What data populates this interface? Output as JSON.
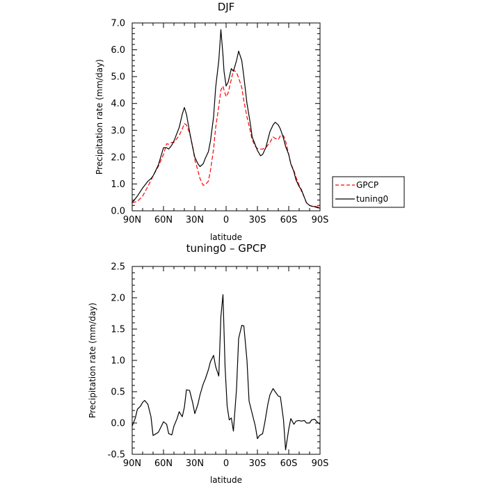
{
  "chart_data": [
    {
      "type": "line",
      "title": "DJF",
      "xlabel": "latitude",
      "ylabel": "Precipitation rate (mm/day)",
      "xlim": [
        -90,
        90
      ],
      "ylim": [
        0,
        7
      ],
      "xticks": [
        {
          "value": -90,
          "label": "90N"
        },
        {
          "value": -60,
          "label": "60N"
        },
        {
          "value": -30,
          "label": "30N"
        },
        {
          "value": 0,
          "label": "0"
        },
        {
          "value": 30,
          "label": "30S"
        },
        {
          "value": 60,
          "label": "60S"
        },
        {
          "value": 90,
          "label": "90S"
        }
      ],
      "yticks": [
        "0.0",
        "1.0",
        "2.0",
        "3.0",
        "4.0",
        "5.0",
        "6.0",
        "7.0"
      ],
      "legend_placement": "right",
      "legend": [
        "GPCP",
        "tuning0"
      ],
      "series": [
        {
          "name": "GPCP",
          "color": "#ff0000",
          "dash": "dashed",
          "x": [
            -90,
            -85,
            -80,
            -75,
            -70,
            -65,
            -60,
            -57,
            -55,
            -52,
            -50,
            -45,
            -42,
            -40,
            -38,
            -35,
            -32,
            -30,
            -27,
            -25,
            -22,
            -20,
            -17,
            -15,
            -12,
            -10,
            -7,
            -5,
            -3,
            -2,
            0,
            2,
            5,
            7,
            10,
            12,
            15,
            17,
            20,
            23,
            25,
            28,
            30,
            33,
            35,
            38,
            40,
            42,
            45,
            47,
            50,
            52,
            55,
            57,
            60,
            62,
            65,
            67,
            70,
            72,
            75,
            77,
            80,
            82,
            85,
            87,
            90
          ],
          "y": [
            0.3,
            0.35,
            0.55,
            0.9,
            1.3,
            1.65,
            2.1,
            2.5,
            2.48,
            2.55,
            2.55,
            2.8,
            3.05,
            3.25,
            3.2,
            2.9,
            2.4,
            1.9,
            1.5,
            1.2,
            0.95,
            0.98,
            1.1,
            1.5,
            2.3,
            3.1,
            3.9,
            4.5,
            4.65,
            4.5,
            4.25,
            4.4,
            4.9,
            5.25,
            5.15,
            4.95,
            4.6,
            4.1,
            3.5,
            3.0,
            2.65,
            2.4,
            2.32,
            2.3,
            2.3,
            2.35,
            2.45,
            2.55,
            2.75,
            2.7,
            2.65,
            2.8,
            2.8,
            2.6,
            2.1,
            1.75,
            1.5,
            1.25,
            0.95,
            0.75,
            0.5,
            0.3,
            0.2,
            0.18,
            0.17,
            0.15,
            0.13
          ]
        },
        {
          "name": "tuning0",
          "color": "#000000",
          "dash": "solid",
          "x": [
            -90,
            -85,
            -80,
            -75,
            -72,
            -70,
            -65,
            -60,
            -57,
            -55,
            -52,
            -50,
            -45,
            -42,
            -40,
            -38,
            -35,
            -32,
            -30,
            -27,
            -25,
            -22,
            -20,
            -17,
            -15,
            -12,
            -10,
            -7,
            -5,
            -3,
            -2,
            0,
            2,
            5,
            7,
            10,
            12,
            15,
            17,
            20,
            23,
            25,
            28,
            30,
            33,
            35,
            38,
            40,
            42,
            45,
            47,
            50,
            52,
            55,
            57,
            60,
            62,
            65,
            67,
            70,
            72,
            75,
            77,
            80,
            82,
            85,
            87,
            90
          ],
          "y": [
            0.3,
            0.55,
            0.85,
            1.1,
            1.2,
            1.3,
            1.7,
            2.35,
            2.35,
            2.3,
            2.45,
            2.6,
            3.1,
            3.6,
            3.85,
            3.6,
            2.95,
            2.35,
            2.0,
            1.75,
            1.65,
            1.75,
            1.95,
            2.2,
            2.6,
            3.5,
            4.6,
            5.6,
            6.75,
            5.8,
            5.2,
            4.65,
            4.8,
            5.3,
            5.2,
            5.6,
            5.95,
            5.6,
            5.0,
            4.0,
            3.3,
            2.75,
            2.45,
            2.25,
            2.05,
            2.1,
            2.35,
            2.65,
            2.95,
            3.2,
            3.3,
            3.2,
            3.05,
            2.7,
            2.4,
            2.1,
            1.75,
            1.45,
            1.15,
            0.9,
            0.8,
            0.5,
            0.3,
            0.2,
            0.17,
            0.15,
            0.12,
            0.1
          ]
        }
      ]
    },
    {
      "type": "line",
      "title": "tuning0 – GPCP",
      "xlabel": "latitude",
      "ylabel": "Precipitation rate (mm/day)",
      "xlim": [
        -90,
        90
      ],
      "ylim": [
        -0.5,
        2.5
      ],
      "xticks": [
        {
          "value": -90,
          "label": "90N"
        },
        {
          "value": -60,
          "label": "60N"
        },
        {
          "value": -30,
          "label": "30N"
        },
        {
          "value": 0,
          "label": "0"
        },
        {
          "value": 30,
          "label": "30S"
        },
        {
          "value": 60,
          "label": "60S"
        },
        {
          "value": 90,
          "label": "90S"
        }
      ],
      "yticks": [
        "-0.5",
        "0.0",
        "0.5",
        "1.0",
        "1.5",
        "2.0",
        "2.5"
      ],
      "series": [
        {
          "color": "#000000",
          "dash": "solid",
          "x": [
            -90,
            -87,
            -85,
            -82,
            -80,
            -78,
            -75,
            -72,
            -70,
            -67,
            -65,
            -62,
            -60,
            -57,
            -55,
            -52,
            -50,
            -47,
            -45,
            -42,
            -40,
            -38,
            -35,
            -32,
            -30,
            -27,
            -25,
            -22,
            -20,
            -17,
            -15,
            -12,
            -10,
            -7,
            -5,
            -3,
            -1,
            1,
            3,
            5,
            7,
            10,
            12,
            15,
            17,
            20,
            22,
            25,
            28,
            30,
            32,
            35,
            37,
            40,
            42,
            45,
            47,
            50,
            52,
            55,
            57,
            60,
            62,
            65,
            67,
            70,
            72,
            75,
            77,
            80,
            82,
            85,
            87,
            90
          ],
          "y": [
            -0.05,
            0.08,
            0.22,
            0.27,
            0.33,
            0.36,
            0.3,
            0.1,
            -0.2,
            -0.17,
            -0.15,
            -0.05,
            0.02,
            -0.02,
            -0.17,
            -0.19,
            -0.05,
            0.07,
            0.18,
            0.1,
            0.25,
            0.53,
            0.52,
            0.32,
            0.15,
            0.3,
            0.45,
            0.62,
            0.7,
            0.85,
            0.98,
            1.08,
            0.9,
            0.75,
            1.7,
            2.05,
            0.9,
            0.27,
            0.05,
            0.08,
            -0.13,
            0.55,
            1.35,
            1.56,
            1.55,
            1.0,
            0.35,
            0.15,
            -0.05,
            -0.25,
            -0.2,
            -0.17,
            0.0,
            0.3,
            0.45,
            0.55,
            0.5,
            0.43,
            0.42,
            0.05,
            -0.43,
            -0.1,
            0.07,
            -0.02,
            0.03,
            0.04,
            0.03,
            0.04,
            0.0,
            0.0,
            0.05,
            0.06,
            0.02,
            -0.02
          ]
        }
      ]
    }
  ]
}
